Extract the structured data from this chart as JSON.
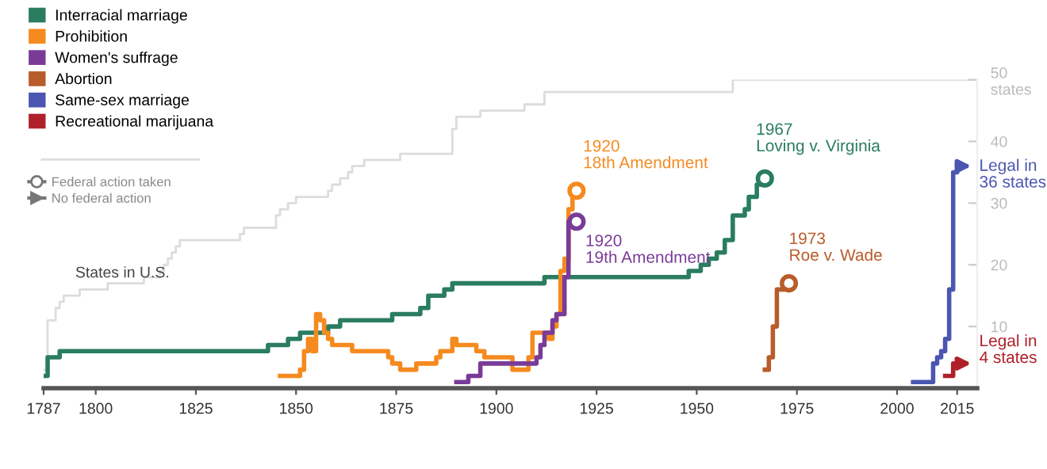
{
  "chart_data": {
    "type": "step",
    "series": [
      {
        "name": "States in U.S.",
        "color": "#dcdcdc",
        "x": [
          1787,
          1788,
          1790,
          1791,
          1792,
          1796,
          1803,
          1812,
          1816,
          1817,
          1818,
          1819,
          1820,
          1821,
          1836,
          1837,
          1845,
          1846,
          1848,
          1850,
          1858,
          1859,
          1861,
          1863,
          1864,
          1867,
          1876,
          1889,
          1890,
          1896,
          1907,
          1912,
          1959,
          2020
        ],
        "values": [
          3,
          11,
          13,
          14,
          15,
          16,
          17,
          18,
          19,
          20,
          21,
          22,
          23,
          24,
          25,
          26,
          28,
          29,
          30,
          31,
          32,
          33,
          34,
          35,
          36,
          37,
          38,
          42,
          44,
          45,
          46,
          48,
          50,
          50
        ]
      },
      {
        "name": "Interracial marriage",
        "color": "#2a7d5f",
        "x": [
          1787,
          1788,
          1791,
          1843,
          1848,
          1851,
          1858,
          1861,
          1874,
          1881,
          1883,
          1887,
          1889,
          1912,
          1948,
          1951,
          1953,
          1955,
          1957,
          1959,
          1962,
          1963,
          1965,
          1966,
          1967
        ],
        "values": [
          2,
          5,
          6,
          7,
          8,
          9,
          10,
          11,
          12,
          13,
          15,
          16,
          17,
          18,
          19,
          20,
          21,
          22,
          24,
          28,
          29,
          31,
          33,
          34,
          34
        ]
      },
      {
        "name": "Prohibition",
        "color": "#f58a1f",
        "x": [
          1846,
          1851,
          1852,
          1853,
          1854,
          1855,
          1856,
          1857,
          1858,
          1859,
          1864,
          1873,
          1874,
          1876,
          1880,
          1885,
          1886,
          1889,
          1890,
          1895,
          1897,
          1904,
          1908,
          1909,
          1913,
          1914,
          1915,
          1916,
          1917,
          1918,
          1919,
          1920
        ],
        "values": [
          2,
          3,
          6,
          8,
          6,
          12,
          11,
          9,
          8,
          7,
          6,
          5,
          4,
          3,
          4,
          5,
          6,
          8,
          7,
          6,
          5,
          3,
          5,
          9,
          8,
          10,
          12,
          19,
          21,
          29,
          32,
          32
        ]
      },
      {
        "name": "Women's suffrage",
        "color": "#7a3b98",
        "x": [
          1890,
          1893,
          1896,
          1910,
          1911,
          1912,
          1914,
          1915,
          1917,
          1918,
          1920
        ],
        "values": [
          1,
          2,
          4,
          5,
          7,
          9,
          11,
          12,
          18,
          27,
          27
        ]
      },
      {
        "name": "Abortion",
        "color": "#b85c2a",
        "x": [
          1967,
          1968,
          1969,
          1970,
          1972,
          1973
        ],
        "values": [
          3,
          5,
          10,
          16,
          17,
          17
        ]
      },
      {
        "name": "Same-sex marriage",
        "color": "#4b56b0",
        "x": [
          2004,
          2009,
          2010,
          2011,
          2012,
          2013,
          2014,
          2015
        ],
        "values": [
          1,
          4,
          5,
          6,
          8,
          16,
          35,
          36
        ]
      },
      {
        "name": "Recreational marijuana",
        "color": "#b0202a",
        "x": [
          2012,
          2014,
          2015
        ],
        "values": [
          2,
          4,
          4
        ]
      },
      {
        "type": "scatter",
        "marker": "circle",
        "color": "#2a7d5f",
        "x": [
          1967
        ],
        "values": [
          34
        ]
      },
      {
        "type": "scatter",
        "marker": "circle",
        "color": "#f58a1f",
        "x": [
          1920
        ],
        "values": [
          32
        ]
      },
      {
        "type": "scatter",
        "marker": "circle",
        "color": "#7a3b98",
        "x": [
          1920
        ],
        "values": [
          27
        ]
      },
      {
        "type": "scatter",
        "marker": "circle",
        "color": "#b85c2a",
        "x": [
          1973
        ],
        "values": [
          17
        ]
      }
    ],
    "xlim": [
      1787,
      2020
    ],
    "xticks": [
      1787,
      1800,
      1825,
      1850,
      1875,
      1900,
      1925,
      1950,
      1975,
      2000,
      2015
    ],
    "ylim": [
      0,
      50
    ],
    "yticks": [
      10,
      20,
      30,
      40,
      {
        "value": 50,
        "label": "50\nstates"
      }
    ],
    "legend": "top left",
    "grid": false,
    "annotations": [
      {
        "text": "1920\n18th Amendment",
        "x": 1920,
        "y": 32
      },
      {
        "text": "1920\n19th Amendment",
        "x": 1920,
        "y": 27
      },
      {
        "text": "1967\nLoving v. Virginia",
        "x": 1967,
        "y": 34
      },
      {
        "text": "1973\nRoe v. Wade",
        "x": 1973,
        "y": 17
      },
      {
        "text": "Legal in\n36 states",
        "x": 2015,
        "y": 36
      },
      {
        "text": "Legal in\n4 states",
        "x": 2015,
        "y": 4
      },
      "Federal action taken",
      "No federal action"
    ]
  }
}
